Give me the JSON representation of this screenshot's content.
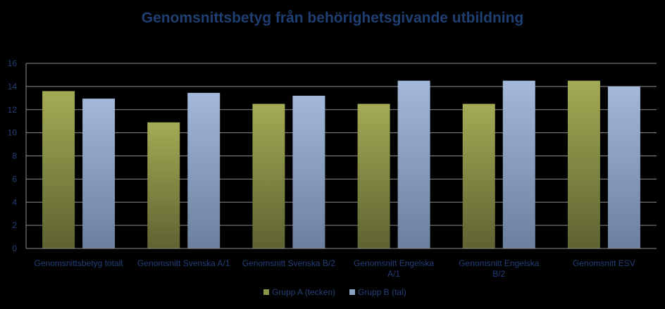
{
  "chart_data": {
    "type": "bar",
    "title": "Genomsnittsbetyg från behörighetsgivande utbildning",
    "categories": [
      [
        "Genomsnittsbetyg totalt"
      ],
      [
        "Genomsnitt Svenska A/1"
      ],
      [
        "Genomsnitt Svenska B/2"
      ],
      [
        "Genomsnitt Engelska",
        "A/1"
      ],
      [
        "Genomsnitt Engelska",
        "B/2"
      ],
      [
        "Genomsnitt ESV"
      ]
    ],
    "series": [
      {
        "name": "Grupp A (tecken)",
        "values": [
          13.6,
          10.9,
          12.5,
          12.5,
          12.5,
          14.5
        ],
        "color": "#8c9448"
      },
      {
        "name": "Grupp B (tal)",
        "values": [
          12.95,
          13.45,
          13.2,
          14.5,
          14.5,
          14.0
        ],
        "color": "#8da3c6"
      }
    ],
    "ylim": [
      0,
      16
    ],
    "yticks": [
      0,
      2,
      4,
      6,
      8,
      10,
      12,
      14,
      16
    ],
    "grid": true,
    "legend_position": "bottom"
  },
  "colors": {
    "title": "#1f3f73",
    "text": "#243f78",
    "grid": "#8c8c8c",
    "background": "#000000"
  }
}
